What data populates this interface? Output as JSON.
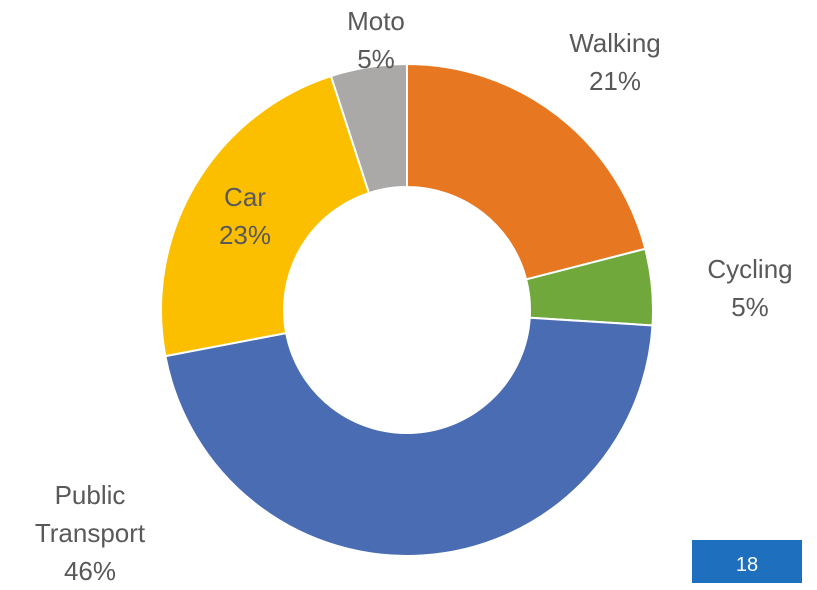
{
  "chart_data": {
    "type": "donut",
    "categories": [
      "Walking",
      "Cycling",
      "Public Transport",
      "Car",
      "Moto"
    ],
    "values": [
      21,
      5,
      46,
      23,
      5
    ],
    "value_labels": [
      "21%",
      "5%",
      "46%",
      "23%",
      "5%"
    ],
    "colors": [
      "#e87722",
      "#70a83b",
      "#4a6cb3",
      "#fbbf00",
      "#aba9a7"
    ]
  },
  "page_number": "18"
}
